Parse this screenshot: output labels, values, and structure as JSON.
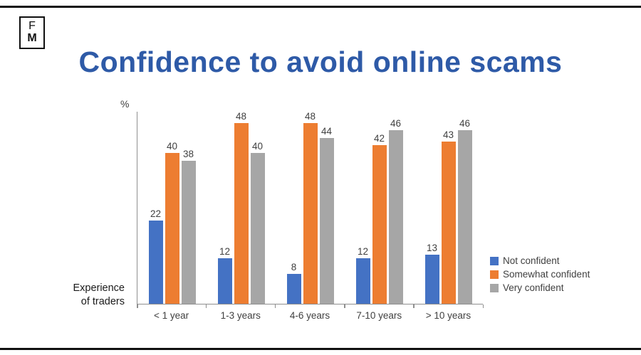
{
  "logo": {
    "line1": "F",
    "line2": "M"
  },
  "title": "Confidence to avoid online scams",
  "axis": {
    "y_unit": "%",
    "x_label_line1": "Experience",
    "x_label_line2": "of traders"
  },
  "colors": {
    "title": "#2e5aa7",
    "not_confident": "#4472c4",
    "somewhat_confident": "#ed7d31",
    "very_confident": "#a6a6a6"
  },
  "chart_data": {
    "type": "bar",
    "title": "Confidence to avoid online scams",
    "xlabel": "Experience of traders",
    "ylabel": "%",
    "ylim": [
      0,
      50
    ],
    "grid": false,
    "legend_position": "bottom-right",
    "data_labels": true,
    "categories": [
      "< 1 year",
      "1-3 years",
      "4-6 years",
      "7-10 years",
      "> 10 years"
    ],
    "series": [
      {
        "name": "Not confident",
        "color": "#4472c4",
        "values": [
          22,
          12,
          8,
          12,
          13
        ]
      },
      {
        "name": "Somewhat confident",
        "color": "#ed7d31",
        "values": [
          40,
          48,
          48,
          42,
          43
        ]
      },
      {
        "name": "Very confident",
        "color": "#a6a6a6",
        "values": [
          38,
          40,
          44,
          46,
          46
        ]
      }
    ]
  }
}
